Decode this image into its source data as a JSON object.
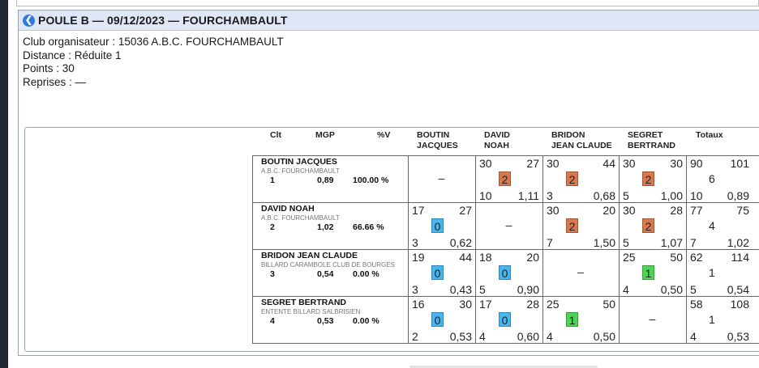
{
  "header": {
    "title": "POULE B — 09/12/2023 — FOURCHAMBAULT",
    "back_icon": "arrow-left-circle-icon"
  },
  "info": {
    "club": "Club organisateur : 15036 A.B.C. FOURCHAMBAULT",
    "distance": "Distance : Réduite 1",
    "points": "Points : 30",
    "reprises": "Reprises : —"
  },
  "columns": {
    "clt": "Clt",
    "mgp": "MGP",
    "pct": "%V",
    "opponents": [
      {
        "line1": "BOUTIN",
        "line2": "JACQUES"
      },
      {
        "line1": "DAVID",
        "line2": "NOAH"
      },
      {
        "line1": "BRIDON",
        "line2": "JEAN CLAUDE"
      },
      {
        "line1": "SEGRET",
        "line2": "BERTRAND"
      }
    ],
    "totaux": "Totaux"
  },
  "colors": {
    "win": "#d9774e",
    "loss": "#45b6ef",
    "draw": "#4fd354"
  },
  "players": [
    {
      "name": "BOUTIN JACQUES",
      "club": "A.B.C. FOURCHAMBAULT",
      "clt": "1",
      "mgp": "0,89",
      "pct": "100.00 %",
      "matches": [
        null,
        {
          "pts": "30",
          "caramboles": "27",
          "score": "2",
          "result": "win",
          "reprises": "10",
          "moy": "1,11"
        },
        {
          "pts": "30",
          "caramboles": "44",
          "score": "2",
          "result": "win",
          "reprises": "3",
          "moy": "0,68"
        },
        {
          "pts": "30",
          "caramboles": "30",
          "score": "2",
          "result": "win",
          "reprises": "5",
          "moy": "1,00"
        }
      ],
      "totals": {
        "pts": "90",
        "caramboles": "101",
        "mid": "6",
        "reprises": "10",
        "moy": "0,89"
      }
    },
    {
      "name": "DAVID NOAH",
      "club": "A.B.C. FOURCHAMBAULT",
      "clt": "2",
      "mgp": "1,02",
      "pct": "66.66 %",
      "matches": [
        {
          "pts": "17",
          "caramboles": "27",
          "score": "0",
          "result": "loss",
          "reprises": "3",
          "moy": "0,62"
        },
        null,
        {
          "pts": "30",
          "caramboles": "20",
          "score": "2",
          "result": "win",
          "reprises": "7",
          "moy": "1,50"
        },
        {
          "pts": "30",
          "caramboles": "28",
          "score": "2",
          "result": "win",
          "reprises": "5",
          "moy": "1,07"
        }
      ],
      "totals": {
        "pts": "77",
        "caramboles": "75",
        "mid": "4",
        "reprises": "7",
        "moy": "1,02"
      }
    },
    {
      "name": "BRIDON JEAN CLAUDE",
      "club": "BILLARD CARAMBOLE CLUB DE BOURGES",
      "clt": "3",
      "mgp": "0,54",
      "pct": "0.00 %",
      "matches": [
        {
          "pts": "19",
          "caramboles": "44",
          "score": "0",
          "result": "loss",
          "reprises": "3",
          "moy": "0,43"
        },
        {
          "pts": "18",
          "caramboles": "20",
          "score": "0",
          "result": "loss",
          "reprises": "5",
          "moy": "0,90"
        },
        null,
        {
          "pts": "25",
          "caramboles": "50",
          "score": "1",
          "result": "draw",
          "reprises": "4",
          "moy": "0,50"
        }
      ],
      "totals": {
        "pts": "62",
        "caramboles": "114",
        "mid": "1",
        "reprises": "5",
        "moy": "0,54"
      }
    },
    {
      "name": "SEGRET BERTRAND",
      "club": "ENTENTE BILLARD SALBRISIEN",
      "clt": "4",
      "mgp": "0,53",
      "pct": "0.00 %",
      "matches": [
        {
          "pts": "16",
          "caramboles": "30",
          "score": "0",
          "result": "loss",
          "reprises": "2",
          "moy": "0,53"
        },
        {
          "pts": "17",
          "caramboles": "28",
          "score": "0",
          "result": "loss",
          "reprises": "4",
          "moy": "0,60"
        },
        {
          "pts": "25",
          "caramboles": "50",
          "score": "1",
          "result": "draw",
          "reprises": "4",
          "moy": "0,50"
        },
        null
      ],
      "totals": {
        "pts": "58",
        "caramboles": "108",
        "mid": "1",
        "reprises": "4",
        "moy": "0,53"
      }
    }
  ],
  "empty_cell": "–"
}
